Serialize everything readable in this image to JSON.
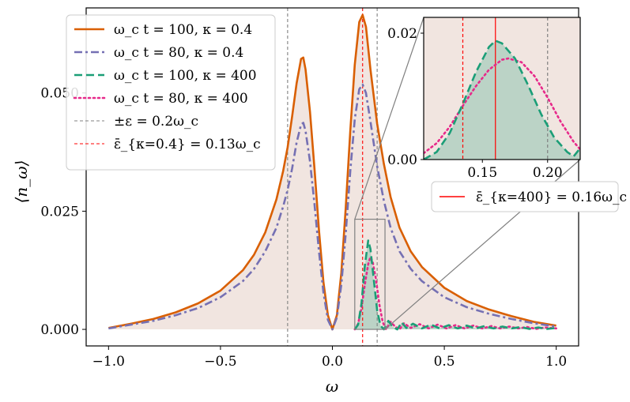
{
  "chart_data": {
    "type": "line",
    "xlabel": "ω",
    "ylabel": "⟨n_ω⟩",
    "xlim": [
      -1.1,
      1.1
    ],
    "ylim": [
      -0.0035,
      0.068
    ],
    "xticks": [
      -1.0,
      -0.5,
      0.0,
      0.5,
      1.0
    ],
    "xtick_labels": [
      "−1.0",
      "−0.5",
      "0.0",
      "0.5",
      "1.0"
    ],
    "yticks": [
      0.0,
      0.025,
      0.05
    ],
    "ytick_labels": [
      "0.000",
      "0.025",
      "0.050"
    ],
    "grid": false,
    "legend_placement": "top-left",
    "series": [
      {
        "name": "ω_c t = 100, κ = 0.4",
        "color": "#d95f02",
        "style": "solid",
        "points": [
          [
            -1.0,
            0.0003
          ],
          [
            -0.9,
            0.0012
          ],
          [
            -0.8,
            0.0022
          ],
          [
            -0.7,
            0.0036
          ],
          [
            -0.6,
            0.0055
          ],
          [
            -0.5,
            0.0082
          ],
          [
            -0.4,
            0.0125
          ],
          [
            -0.35,
            0.0158
          ],
          [
            -0.3,
            0.0205
          ],
          [
            -0.25,
            0.0275
          ],
          [
            -0.22,
            0.0335
          ],
          [
            -0.2,
            0.0385
          ],
          [
            -0.18,
            0.045
          ],
          [
            -0.16,
            0.052
          ],
          [
            -0.14,
            0.0572
          ],
          [
            -0.13,
            0.0575
          ],
          [
            -0.12,
            0.055
          ],
          [
            -0.1,
            0.046
          ],
          [
            -0.08,
            0.034
          ],
          [
            -0.06,
            0.021
          ],
          [
            -0.04,
            0.01
          ],
          [
            -0.02,
            0.003
          ],
          [
            0.0,
            0.0
          ],
          [
            0.02,
            0.003
          ],
          [
            0.04,
            0.012
          ],
          [
            0.06,
            0.026
          ],
          [
            0.08,
            0.042
          ],
          [
            0.1,
            0.056
          ],
          [
            0.12,
            0.065
          ],
          [
            0.135,
            0.0665
          ],
          [
            0.15,
            0.064
          ],
          [
            0.17,
            0.055
          ],
          [
            0.2,
            0.0435
          ],
          [
            0.23,
            0.035
          ],
          [
            0.26,
            0.028
          ],
          [
            0.3,
            0.0215
          ],
          [
            0.35,
            0.0165
          ],
          [
            0.4,
            0.0132
          ],
          [
            0.5,
            0.0088
          ],
          [
            0.6,
            0.006
          ],
          [
            0.7,
            0.0042
          ],
          [
            0.8,
            0.0028
          ],
          [
            0.9,
            0.0016
          ],
          [
            1.0,
            0.0008
          ]
        ]
      },
      {
        "name": "ω_c t = 80, κ = 0.4",
        "color": "#7570b3",
        "style": "dashdot",
        "points": [
          [
            -1.0,
            0.0002
          ],
          [
            -0.9,
            0.001
          ],
          [
            -0.8,
            0.0018
          ],
          [
            -0.7,
            0.003
          ],
          [
            -0.6,
            0.0045
          ],
          [
            -0.5,
            0.0068
          ],
          [
            -0.4,
            0.0102
          ],
          [
            -0.35,
            0.0128
          ],
          [
            -0.3,
            0.0165
          ],
          [
            -0.25,
            0.0215
          ],
          [
            -0.22,
            0.026
          ],
          [
            -0.2,
            0.0295
          ],
          [
            -0.18,
            0.034
          ],
          [
            -0.16,
            0.0395
          ],
          [
            -0.14,
            0.0433
          ],
          [
            -0.13,
            0.0437
          ],
          [
            -0.12,
            0.042
          ],
          [
            -0.1,
            0.0355
          ],
          [
            -0.08,
            0.0265
          ],
          [
            -0.06,
            0.0165
          ],
          [
            -0.04,
            0.0078
          ],
          [
            -0.02,
            0.002
          ],
          [
            0.0,
            0.0
          ],
          [
            0.02,
            0.0025
          ],
          [
            0.04,
            0.0095
          ],
          [
            0.06,
            0.0205
          ],
          [
            0.08,
            0.0335
          ],
          [
            0.1,
            0.0445
          ],
          [
            0.12,
            0.0508
          ],
          [
            0.135,
            0.0518
          ],
          [
            0.15,
            0.05
          ],
          [
            0.17,
            0.044
          ],
          [
            0.2,
            0.0345
          ],
          [
            0.23,
            0.0272
          ],
          [
            0.26,
            0.0215
          ],
          [
            0.3,
            0.0165
          ],
          [
            0.35,
            0.0128
          ],
          [
            0.4,
            0.0102
          ],
          [
            0.5,
            0.0068
          ],
          [
            0.6,
            0.0047
          ],
          [
            0.7,
            0.0033
          ],
          [
            0.8,
            0.0022
          ],
          [
            0.9,
            0.0013
          ],
          [
            1.0,
            0.0006
          ]
        ]
      },
      {
        "name": "ω_c t = 100, κ = 400",
        "color": "#1b9e77",
        "style": "dashed",
        "points": [
          [
            0.1,
            0.0
          ],
          [
            0.115,
            0.001
          ],
          [
            0.13,
            0.0055
          ],
          [
            0.145,
            0.0135
          ],
          [
            0.16,
            0.0188
          ],
          [
            0.17,
            0.017
          ],
          [
            0.185,
            0.0105
          ],
          [
            0.2,
            0.004
          ],
          [
            0.215,
            0.0008
          ],
          [
            0.23,
            0.0
          ],
          [
            0.25,
            0.0018
          ],
          [
            0.27,
            0.0005
          ],
          [
            0.29,
            0.0
          ],
          [
            0.31,
            0.0015
          ],
          [
            0.33,
            0.0003
          ],
          [
            0.36,
            0.0012
          ],
          [
            0.4,
            0.0002
          ],
          [
            0.44,
            0.001
          ],
          [
            0.48,
            0.0002
          ],
          [
            0.52,
            0.0009
          ],
          [
            0.56,
            0.0002
          ],
          [
            0.6,
            0.0008
          ],
          [
            0.64,
            0.0002
          ],
          [
            0.68,
            0.0007
          ],
          [
            0.72,
            0.0002
          ],
          [
            0.76,
            0.0006
          ],
          [
            0.8,
            0.0002
          ],
          [
            0.84,
            0.0005
          ],
          [
            0.88,
            0.0001
          ],
          [
            0.92,
            0.0004
          ],
          [
            0.96,
            0.0001
          ],
          [
            1.0,
            0.0003
          ]
        ]
      },
      {
        "name": "ω_c t = 80, κ = 400",
        "color": "#e7298a",
        "style": "dotted",
        "points": [
          [
            0.1,
            0.0
          ],
          [
            0.115,
            0.0012
          ],
          [
            0.13,
            0.0045
          ],
          [
            0.145,
            0.0095
          ],
          [
            0.16,
            0.0138
          ],
          [
            0.17,
            0.0153
          ],
          [
            0.18,
            0.0143
          ],
          [
            0.195,
            0.0105
          ],
          [
            0.21,
            0.0052
          ],
          [
            0.225,
            0.0015
          ],
          [
            0.24,
            0.0
          ],
          [
            0.26,
            0.0016
          ],
          [
            0.28,
            0.0006
          ],
          [
            0.3,
            0.0
          ],
          [
            0.32,
            0.0013
          ],
          [
            0.35,
            0.0003
          ],
          [
            0.39,
            0.0011
          ],
          [
            0.43,
            0.0002
          ],
          [
            0.47,
            0.001
          ],
          [
            0.51,
            0.0002
          ],
          [
            0.55,
            0.0009
          ],
          [
            0.59,
            0.0002
          ],
          [
            0.63,
            0.0008
          ],
          [
            0.67,
            0.0002
          ],
          [
            0.71,
            0.0007
          ],
          [
            0.75,
            0.0002
          ],
          [
            0.79,
            0.0006
          ],
          [
            0.83,
            0.0002
          ],
          [
            0.87,
            0.0005
          ],
          [
            0.91,
            0.0001
          ],
          [
            0.95,
            0.0004
          ],
          [
            1.0,
            0.0002
          ]
        ]
      }
    ],
    "vlines": [
      {
        "name": "±ε = 0.2ω_c",
        "x": [
          -0.2,
          0.2
        ],
        "color": "#808080",
        "style": "dashed"
      },
      {
        "name": "ε̄_{κ=0.4} = 0.13ω_c",
        "x": [
          0.135
        ],
        "color": "#ff0000",
        "style": "dashed"
      }
    ],
    "inset": {
      "xlim": [
        0.105,
        0.225
      ],
      "ylim": [
        0.0,
        0.0225
      ],
      "xticks": [
        0.15,
        0.2
      ],
      "xtick_labels": [
        "0.15",
        "0.20"
      ],
      "yticks": [
        0.0,
        0.02
      ],
      "ytick_labels": [
        "0.00",
        "0.02"
      ],
      "source_region": {
        "x": [
          0.1,
          0.235
        ],
        "y": [
          0.0,
          0.0233
        ]
      },
      "vlines": [
        {
          "x": 0.135,
          "color": "#ff0000",
          "style": "dashed"
        },
        {
          "x": 0.16,
          "color": "#ff0000",
          "style": "solid"
        },
        {
          "x": 0.2,
          "color": "#808080",
          "style": "dashed"
        }
      ],
      "series": [
        {
          "color": "#1b9e77",
          "style": "dashed",
          "points": [
            [
              0.105,
              0.0
            ],
            [
              0.115,
              0.0012
            ],
            [
              0.125,
              0.0042
            ],
            [
              0.135,
              0.0088
            ],
            [
              0.145,
              0.0138
            ],
            [
              0.155,
              0.0178
            ],
            [
              0.16,
              0.0188
            ],
            [
              0.165,
              0.0184
            ],
            [
              0.175,
              0.016
            ],
            [
              0.185,
              0.0118
            ],
            [
              0.195,
              0.0072
            ],
            [
              0.205,
              0.0035
            ],
            [
              0.215,
              0.0012
            ],
            [
              0.22,
              0.0005
            ],
            [
              0.225,
              0.0018
            ]
          ]
        },
        {
          "color": "#e7298a",
          "style": "dotted",
          "points": [
            [
              0.105,
              0.001
            ],
            [
              0.115,
              0.0026
            ],
            [
              0.125,
              0.0052
            ],
            [
              0.135,
              0.0085
            ],
            [
              0.145,
              0.0116
            ],
            [
              0.155,
              0.0142
            ],
            [
              0.165,
              0.0158
            ],
            [
              0.17,
              0.016
            ],
            [
              0.18,
              0.0154
            ],
            [
              0.19,
              0.0132
            ],
            [
              0.2,
              0.0098
            ],
            [
              0.21,
              0.006
            ],
            [
              0.22,
              0.0028
            ],
            [
              0.225,
              0.0016
            ]
          ]
        }
      ],
      "legend": {
        "name": "ε̄_{κ=400} = 0.16ω_c",
        "color": "#ff0000",
        "style": "solid"
      }
    }
  }
}
